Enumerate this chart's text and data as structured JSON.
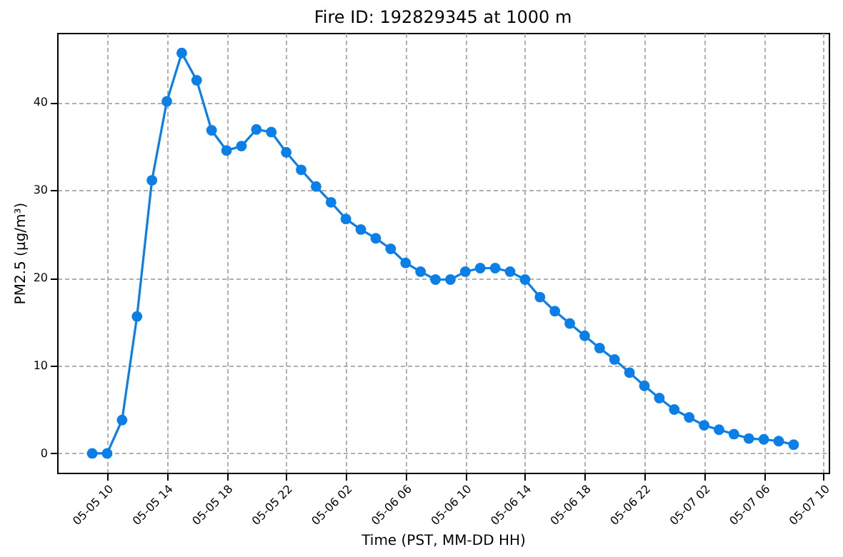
{
  "chart_data": {
    "type": "line",
    "title": "Fire ID: 192829345 at 1000 m",
    "xlabel": "Time (PST, MM-DD HH)",
    "ylabel": "PM2.5 (µg/m³)",
    "x": [
      "--05-05T09:00",
      "--05-05T10:00",
      "--05-05T11:00",
      "--05-05T12:00",
      "--05-05T13:00",
      "--05-05T14:00",
      "--05-05T15:00",
      "--05-05T16:00",
      "--05-05T17:00",
      "--05-05T18:00",
      "--05-05T19:00",
      "--05-05T20:00",
      "--05-05T21:00",
      "--05-05T22:00",
      "--05-05T23:00",
      "--05-06T00:00",
      "--05-06T01:00",
      "--05-06T02:00",
      "--05-06T03:00",
      "--05-06T04:00",
      "--05-06T05:00",
      "--05-06T06:00",
      "--05-06T07:00",
      "--05-06T08:00",
      "--05-06T09:00",
      "--05-06T10:00",
      "--05-06T11:00",
      "--05-06T12:00",
      "--05-06T13:00",
      "--05-06T14:00",
      "--05-06T15:00",
      "--05-06T16:00",
      "--05-06T17:00",
      "--05-06T18:00",
      "--05-06T19:00",
      "--05-06T20:00",
      "--05-06T21:00",
      "--05-06T22:00",
      "--05-06T23:00",
      "--05-07T00:00",
      "--05-07T01:00",
      "--05-07T02:00",
      "--05-07T03:00",
      "--05-07T04:00",
      "--05-07T05:00",
      "--05-07T06:00",
      "--05-07T07:00",
      "--05-07T08:00"
    ],
    "series": [
      {
        "color": "#0a7fe8",
        "values": [
          0,
          0,
          3.8,
          15.6,
          31.1,
          40.1,
          45.6,
          42.5,
          36.8,
          34.5,
          35.0,
          36.9,
          36.6,
          34.3,
          32.3,
          30.4,
          28.6,
          26.7,
          25.5,
          24.5,
          23.3,
          21.7,
          20.7,
          19.8,
          19.8,
          20.7,
          21.1,
          21.1,
          20.7,
          19.8,
          17.8,
          16.2,
          14.8,
          13.4,
          12.0,
          10.7,
          9.2,
          7.7,
          6.3,
          5.0,
          4.1,
          3.2,
          2.7,
          2.2,
          1.7,
          1.6,
          1.4,
          1.0
        ]
      }
    ],
    "xlim": [
      "--05-05T06:39",
      "--05-07T10:21"
    ],
    "xticks": [
      {
        "value": "--05-05T10:00",
        "label": "05-05 10"
      },
      {
        "value": "--05-05T14:00",
        "label": "05-05 14"
      },
      {
        "value": "--05-05T18:00",
        "label": "05-05 18"
      },
      {
        "value": "--05-05T22:00",
        "label": "05-05 22"
      },
      {
        "value": "--05-06T02:00",
        "label": "05-06 02"
      },
      {
        "value": "--05-06T06:00",
        "label": "05-06 06"
      },
      {
        "value": "--05-06T10:00",
        "label": "05-06 10"
      },
      {
        "value": "--05-06T14:00",
        "label": "05-06 14"
      },
      {
        "value": "--05-06T18:00",
        "label": "05-06 18"
      },
      {
        "value": "--05-06T22:00",
        "label": "05-06 22"
      },
      {
        "value": "--05-07T02:00",
        "label": "05-07 02"
      },
      {
        "value": "--05-07T06:00",
        "label": "05-07 06"
      },
      {
        "value": "--05-07T10:00",
        "label": "05-07 10"
      }
    ],
    "ylim": [
      -2.2,
      47.9
    ],
    "yticks": [
      0,
      10,
      20,
      30,
      40
    ],
    "grid": true,
    "marker": "circle",
    "line_style": "solid"
  }
}
